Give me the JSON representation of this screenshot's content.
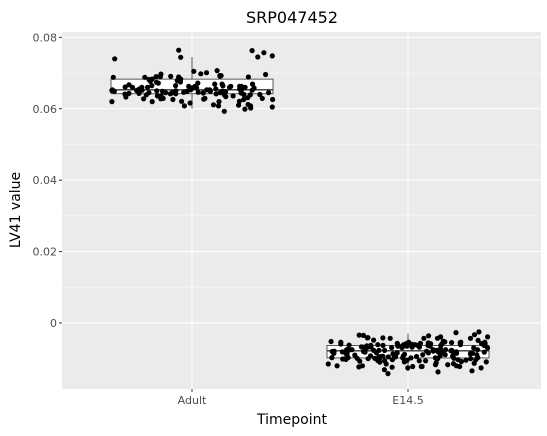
{
  "chart_data": {
    "type": "box+jitter",
    "title": "SRP047452",
    "xlabel": "Timepoint",
    "ylabel": "LV41 value",
    "categories": [
      "Adult",
      "E14.5"
    ],
    "ylim": [
      -0.0185,
      0.0815
    ],
    "yticks": [
      0,
      0.02,
      0.04,
      0.06,
      0.08
    ],
    "ytick_labels": [
      "0",
      "0.02",
      "0.04",
      "0.06",
      "0.08"
    ],
    "grid": true,
    "legend": "none",
    "colors": {
      "panel": "#ebebeb",
      "grid": "#ffffff",
      "points": "#000000"
    },
    "boxes": [
      {
        "category": "Adult",
        "lower_whisker": 0.06,
        "q1": 0.0642,
        "median": 0.0653,
        "q3": 0.0683,
        "upper_whisker": 0.0745
      },
      {
        "category": "E14.5",
        "lower_whisker": -0.0135,
        "q1": -0.0098,
        "median": -0.0078,
        "q3": -0.0063,
        "upper_whisker": -0.003
      }
    ],
    "points": [
      {
        "category": "Adult",
        "values": [
          0.0707,
          0.069,
          0.0611,
          0.0605,
          0.0693,
          0.0645,
          0.0655,
          0.0658,
          0.0648,
          0.066,
          0.0663,
          0.0645,
          0.0663,
          0.0652,
          0.0629,
          0.0645,
          0.0688,
          0.061,
          0.0652,
          0.0631,
          0.0643,
          0.0649,
          0.066,
          0.0642,
          0.069,
          0.0691,
          0.064,
          0.0763,
          0.0687,
          0.0675,
          0.064,
          0.0643,
          0.0651,
          0.0649,
          0.0645,
          0.0659,
          0.0645,
          0.0649,
          0.0636,
          0.066,
          0.0621,
          0.0669,
          0.0626,
          0.0697,
          0.0672,
          0.0612,
          0.0641,
          0.0667,
          0.0701,
          0.0633,
          0.0664,
          0.0642,
          0.0639,
          0.0683,
          0.0626,
          0.065,
          0.0764,
          0.0757,
          0.0744,
          0.074,
          0.0665,
          0.066,
          0.062,
          0.062,
          0.0636,
          0.0674,
          0.0689,
          0.0639,
          0.0644,
          0.0663,
          0.0646,
          0.0689,
          0.0649,
          0.0593,
          0.0649,
          0.0698,
          0.0646,
          0.0705,
          0.0608,
          0.0672,
          0.0616,
          0.0696,
          0.0628,
          0.0663,
          0.0745,
          0.0653,
          0.0688,
          0.0669,
          0.0642,
          0.0665,
          0.0663,
          0.0649,
          0.065,
          0.0621,
          0.0748,
          0.0653,
          0.066,
          0.0644,
          0.0691,
          0.0602,
          0.0627,
          0.0648,
          0.0641,
          0.0629,
          0.0661,
          0.0677,
          0.0608,
          0.065,
          0.0636,
          0.0608,
          0.0682,
          0.0658,
          0.0679,
          0.0683,
          0.0653,
          0.0629,
          0.0634,
          0.0599,
          0.0655,
          0.0626,
          0.0653,
          0.0639,
          0.0628,
          0.0651,
          0.062,
          0.0658,
          0.0656,
          0.0669,
          0.0693
        ]
      },
      {
        "category": "E14.5",
        "values": [
          -0.0058,
          -0.0075,
          -0.0103,
          -0.0043,
          -0.0097,
          -0.0106,
          -0.0067,
          -0.0077,
          -0.0064,
          -0.0077,
          -0.0137,
          -0.0106,
          -0.0142,
          -0.0064,
          -0.0094,
          -0.0079,
          -0.0061,
          -0.0063,
          -0.0072,
          -0.0098,
          -0.0054,
          -0.0085,
          -0.0102,
          -0.0109,
          -0.0088,
          -0.0076,
          -0.01,
          -0.0042,
          -0.0115,
          -0.0106,
          -0.0043,
          -0.0101,
          -0.0074,
          -0.0075,
          -0.0087,
          -0.0077,
          -0.0058,
          -0.0075,
          -0.0131,
          -0.012,
          -0.0092,
          -0.0089,
          -0.0061,
          -0.0081,
          -0.0043,
          -0.0077,
          -0.0109,
          -0.0068,
          -0.0042,
          -0.0122,
          -0.0054,
          -0.01,
          -0.0075,
          -0.0083,
          -0.0122,
          -0.0048,
          -0.0061,
          -0.0053,
          -0.0068,
          -0.008,
          -0.01,
          -0.0068,
          -0.0062,
          -0.0055,
          -0.0097,
          -0.0075,
          -0.0105,
          -0.0069,
          -0.0115,
          -0.0092,
          -0.0036,
          -0.0057,
          -0.0063,
          -0.0057,
          -0.0084,
          -0.0089,
          -0.0105,
          -0.0049,
          -0.0097,
          -0.0079,
          -0.0124,
          -0.0087,
          -0.0063,
          -0.0085,
          -0.0103,
          -0.0069,
          -0.0025,
          -0.0058,
          -0.008,
          -0.0092,
          -0.0095,
          -0.009,
          -0.0085,
          -0.0099,
          -0.0058,
          -0.0051,
          -0.007,
          -0.0086,
          -0.0098,
          -0.0098,
          -0.0134,
          -0.0101,
          -0.0099,
          -0.0043,
          -0.0084,
          -0.0063,
          -0.0054,
          -0.0033,
          -0.0117,
          -0.0052,
          -0.0079,
          -0.0077,
          -0.0055,
          -0.0089,
          -0.0126,
          -0.006,
          -0.0085,
          -0.0107,
          -0.0094,
          -0.0035,
          -0.0113,
          -0.0081,
          -0.0092,
          -0.0101,
          -0.0104,
          -0.0093,
          -0.008,
          -0.0063,
          -0.0034,
          -0.0108,
          -0.0061,
          -0.0078,
          -0.008,
          -0.0075,
          -0.0059,
          -0.007,
          -0.0093,
          -0.0064,
          -0.0065,
          -0.012,
          -0.011,
          -0.0056,
          -0.007,
          -0.0099,
          -0.008,
          -0.0041,
          -0.0114,
          -0.0126,
          -0.0065,
          -0.0068,
          -0.0085,
          -0.0103,
          -0.0065,
          -0.0058,
          -0.0063,
          -0.0095,
          -0.0102,
          -0.0122,
          -0.0094,
          -0.008,
          -0.0095,
          -0.0079,
          -0.0039,
          -0.0027,
          -0.012,
          -0.0082,
          -0.0123,
          -0.0117,
          -0.0075,
          -0.0087,
          -0.0061,
          -0.0082,
          -0.0112,
          -0.0064,
          -0.0081,
          -0.0122,
          -0.0054,
          -0.0039,
          -0.0081
        ]
      }
    ]
  }
}
